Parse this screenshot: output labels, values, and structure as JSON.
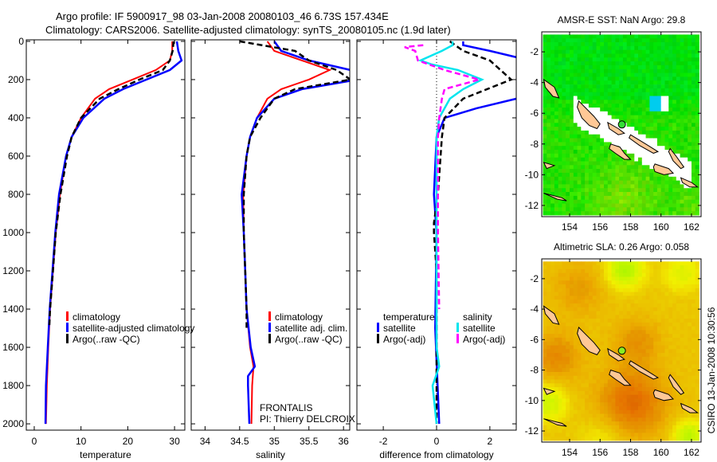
{
  "header": {
    "title_line1": "Argo profile: IF 5900917_98 03-Jan-2008 20080103_46 6.73S 157.434E",
    "title_line2": "Climatology: CARS2006. Satellite-adjusted climatology: synTS_20080105.nc (1.9d later)"
  },
  "colors": {
    "climatology": "#ff0000",
    "satellite": "#0000ff",
    "argo": "#000000",
    "sal_satellite": "#00e5ee",
    "sal_argo": "#ff00ff",
    "land": "#ffc896",
    "float": "#33dd33"
  },
  "annotations": {
    "program": "FRONTALIS",
    "pi": "PI: Thierry DELCROIX",
    "footer": "CSIRO 13-Jan-2008 10:30:56"
  },
  "chart_data": [
    {
      "type": "line",
      "id": "temperature",
      "xlabel": "temperature",
      "ylabel": "",
      "xlim": [
        -1.7,
        32.2
      ],
      "ylim": [
        2033,
        -8
      ],
      "xticks": [
        "0",
        "10",
        "20",
        "30"
      ],
      "xtick_values": [
        0,
        10,
        20,
        30
      ],
      "yticks": [
        "0",
        "200",
        "400",
        "600",
        "800",
        "1000",
        "1200",
        "1400",
        "1600",
        "1800",
        "2000"
      ],
      "ytick_values": [
        0,
        200,
        400,
        600,
        800,
        1000,
        1200,
        1400,
        1600,
        1800,
        2000
      ],
      "legend": [
        "climatology",
        "satellite-adjusted climatology",
        "Argo(..raw -QC)"
      ],
      "series": [
        {
          "name": "climatology",
          "depth": [
            0,
            50,
            100,
            150,
            200,
            250,
            300,
            400,
            500,
            600,
            800,
            1000,
            1200,
            1400,
            1600,
            1800,
            2000
          ],
          "values": [
            29.5,
            29.5,
            29.0,
            26,
            21,
            16,
            13,
            10,
            8,
            6.8,
            5.5,
            4.6,
            4.0,
            3.4,
            3.0,
            2.7,
            2.5
          ]
        },
        {
          "name": "satellite-adjusted climatology",
          "depth": [
            0,
            50,
            100,
            150,
            200,
            250,
            300,
            400,
            500,
            600,
            800,
            1000,
            1200,
            1400,
            1600,
            1800,
            2000
          ],
          "values": [
            30.5,
            30.8,
            31.5,
            29,
            24,
            19,
            15,
            10.5,
            8,
            6.8,
            5.3,
            4.5,
            3.9,
            3.3,
            2.9,
            2.5,
            2.4
          ]
        },
        {
          "name": "Argo(..raw -QC)",
          "depth": [
            0,
            50,
            100,
            150,
            200,
            250,
            300,
            400,
            500,
            600,
            800,
            1000,
            1200,
            1400,
            1500
          ],
          "values": [
            29.8,
            29.6,
            29.0,
            27.5,
            22.5,
            18,
            14,
            10,
            8,
            7,
            5.6,
            4.6,
            4.0,
            3.4,
            3.2
          ]
        }
      ]
    },
    {
      "type": "line",
      "id": "salinity",
      "xlabel": "salinity",
      "xlim": [
        33.8,
        36.09
      ],
      "ylim": [
        2033,
        -8
      ],
      "xticks": [
        "34",
        "34.5",
        "35",
        "35.5",
        "36"
      ],
      "xtick_values": [
        34,
        34.5,
        35,
        35.5,
        36
      ],
      "ytick_values": [
        0,
        200,
        400,
        600,
        800,
        1000,
        1200,
        1400,
        1600,
        1800,
        2000
      ],
      "legend": [
        "climatology",
        "satellite adj. clim.",
        "Argo(..raw -QC)"
      ],
      "series": [
        {
          "name": "climatology",
          "depth": [
            0,
            50,
            100,
            150,
            200,
            250,
            300,
            400,
            500,
            600,
            800,
            1000,
            1200,
            1400,
            1600,
            1700,
            1800,
            2000
          ],
          "values": [
            34.9,
            35.0,
            35.4,
            35.8,
            35.5,
            35.1,
            34.9,
            34.75,
            34.65,
            34.6,
            34.55,
            34.56,
            34.58,
            34.6,
            34.65,
            34.7,
            34.68,
            34.67
          ]
        },
        {
          "name": "satellite adj. clim.",
          "depth": [
            0,
            50,
            100,
            150,
            200,
            250,
            300,
            400,
            500,
            600,
            800,
            1000,
            1200,
            1400,
            1600,
            1700,
            1750,
            1800,
            2000
          ],
          "values": [
            35.0,
            35.1,
            35.5,
            36.1,
            36.2,
            35.4,
            35.0,
            34.75,
            34.65,
            34.6,
            34.53,
            34.56,
            34.58,
            34.6,
            34.66,
            34.72,
            34.62,
            34.62,
            34.64
          ]
        },
        {
          "name": "Argo(..raw -QC)",
          "depth": [
            0,
            50,
            100,
            150,
            200,
            250,
            300,
            400,
            500,
            600,
            800,
            1000,
            1200,
            1400,
            1500
          ],
          "values": [
            34.5,
            35.3,
            35.5,
            35.9,
            36.1,
            35.3,
            35.0,
            34.8,
            34.65,
            34.6,
            34.56,
            34.56,
            34.58,
            34.6,
            34.6
          ]
        }
      ]
    },
    {
      "type": "line",
      "id": "difference",
      "xlabel": "difference from climatology",
      "xlim": [
        -2.99,
        2.99
      ],
      "ylim": [
        2033,
        -8
      ],
      "xticks": [
        "-2",
        "0",
        "2"
      ],
      "xtick_values": [
        -2,
        0,
        2
      ],
      "ytick_values": [
        0,
        200,
        400,
        600,
        800,
        1000,
        1200,
        1400,
        1600,
        1800,
        2000
      ],
      "legend_headers": [
        "temperature",
        "salinity"
      ],
      "legend": [
        "satellite",
        "Argo(-adj)",
        "satellite",
        "Argo(-adj)"
      ],
      "series": [
        {
          "name": "temperature satellite",
          "depth": [
            0,
            20,
            50,
            100,
            200,
            300,
            350,
            400,
            500,
            800,
            1000,
            1500,
            2000
          ],
          "values": [
            1.0,
            1.0,
            2.0,
            3.5,
            3.5,
            3.0,
            1.5,
            0.3,
            0,
            -0.1,
            0,
            -0.05,
            0.1
          ]
        },
        {
          "name": "temperature Argo(-adj)",
          "depth": [
            0,
            50,
            100,
            200,
            300,
            400,
            500,
            800,
            950,
            1000,
            1200,
            2000
          ],
          "values": [
            0.5,
            1.0,
            2.0,
            2.8,
            1.0,
            0.3,
            0.2,
            0.05,
            -0.1,
            -0.1,
            0,
            0
          ]
        },
        {
          "name": "salinity satellite",
          "depth": [
            0,
            20,
            50,
            100,
            120,
            150,
            200,
            250,
            300,
            400,
            500,
            1000,
            1600,
            1700,
            1800,
            2000
          ],
          "values": [
            0.6,
            0.6,
            0.2,
            -0.6,
            -0.2,
            0.8,
            1.7,
            1.0,
            0.5,
            0.1,
            0,
            0,
            0,
            0.1,
            -0.15,
            0
          ]
        },
        {
          "name": "salinity Argo(-adj)",
          "depth": [
            20,
            30,
            50,
            100,
            150,
            200,
            250,
            300,
            400,
            500,
            1000,
            1400
          ],
          "values": [
            -0.5,
            -1.2,
            -0.8,
            -0.7,
            0.3,
            1.6,
            0.3,
            0.2,
            0.1,
            0.05,
            0.05,
            0.1
          ]
        }
      ]
    },
    {
      "type": "heatmap",
      "id": "sst-map",
      "title": "AMSR-E SST: NaN Argo: 29.8",
      "xlim": [
        152.17,
        162.63
      ],
      "ylim": [
        -12.73,
        -0.7
      ],
      "xticks": [
        "154",
        "156",
        "158",
        "160",
        "162"
      ],
      "xtick_values": [
        154,
        156,
        158,
        160,
        162
      ],
      "yticks": [
        "-2",
        "-4",
        "-6",
        "-8",
        "-10",
        "-12"
      ],
      "ytick_values": [
        -2,
        -4,
        -6,
        -8,
        -10,
        -12
      ],
      "float_position": [
        157.434,
        -6.73
      ]
    },
    {
      "type": "heatmap",
      "id": "sla-map",
      "title": "Altimetric SLA: 0.26 Argo: 0.058",
      "xlim": [
        152.17,
        162.63
      ],
      "ylim": [
        -12.73,
        -0.7
      ],
      "xticks": [
        "154",
        "156",
        "158",
        "160",
        "162"
      ],
      "xtick_values": [
        154,
        156,
        158,
        160,
        162
      ],
      "yticks": [
        "-2",
        "-4",
        "-6",
        "-8",
        "-10",
        "-12"
      ],
      "ytick_values": [
        -2,
        -4,
        -6,
        -8,
        -10,
        -12
      ],
      "float_position": [
        157.434,
        -6.73
      ]
    }
  ]
}
